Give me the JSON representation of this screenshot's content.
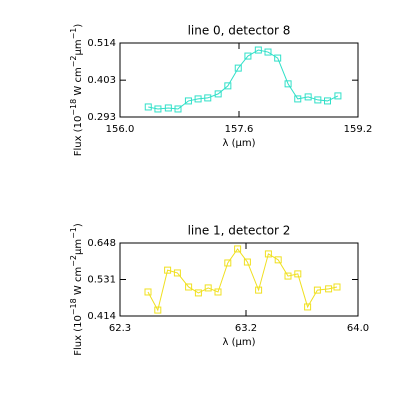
{
  "chart_data": [
    {
      "type": "line",
      "title": "line 0, detector 8",
      "x_label": "λ (μm)",
      "y_label": [
        "Flux (10",
        "−18",
        " W cm",
        "−2",
        "μm",
        "−1",
        ")"
      ],
      "xlim": [
        156.0,
        159.2
      ],
      "xticks": [
        {
          "value": 156.0,
          "label": "156.0"
        },
        157.6,
        159.2
      ],
      "ylim": [
        0.293,
        0.514
      ],
      "yticks": [
        0.293,
        0.403,
        0.514
      ],
      "x": [
        156.38,
        156.51,
        156.65,
        156.78,
        156.92,
        157.05,
        157.18,
        157.32,
        157.45,
        157.59,
        157.72,
        157.86,
        157.99,
        158.12,
        158.26,
        158.39,
        158.53,
        158.66,
        158.79,
        158.93
      ],
      "series": [
        {
          "color": "#30e0c8",
          "values": [
            0.323,
            0.317,
            0.32,
            0.317,
            0.341,
            0.347,
            0.35,
            0.362,
            0.386,
            0.439,
            0.475,
            0.493,
            0.487,
            0.469,
            0.392,
            0.347,
            0.353,
            0.344,
            0.341,
            0.356
          ]
        }
      ]
    },
    {
      "type": "line",
      "title": "line 1, detector 2",
      "x_label": "λ (μm)",
      "y_label": [
        "Flux (10",
        "−18",
        " W cm",
        "−2",
        "μm",
        "−1",
        ")"
      ],
      "xlim": [
        62.3,
        64.0
      ],
      "xticks": [
        62.3,
        63.2,
        {
          "value": 64.0,
          "label": "64.0"
        }
      ],
      "ylim": [
        0.414,
        0.648
      ],
      "yticks": [
        0.414,
        0.531,
        0.648
      ],
      "x": [
        62.5,
        62.57,
        62.64,
        62.71,
        62.79,
        62.86,
        62.93,
        63.0,
        63.07,
        63.14,
        63.21,
        63.29,
        63.36,
        63.43,
        63.5,
        63.57,
        63.64,
        63.71,
        63.79,
        63.85
      ],
      "series": [
        {
          "color": "#f0e020",
          "values": [
            0.491,
            0.433,
            0.561,
            0.552,
            0.507,
            0.488,
            0.504,
            0.491,
            0.584,
            0.629,
            0.587,
            0.497,
            0.613,
            0.594,
            0.542,
            0.549,
            0.443,
            0.497,
            0.501,
            0.507
          ]
        }
      ]
    }
  ]
}
